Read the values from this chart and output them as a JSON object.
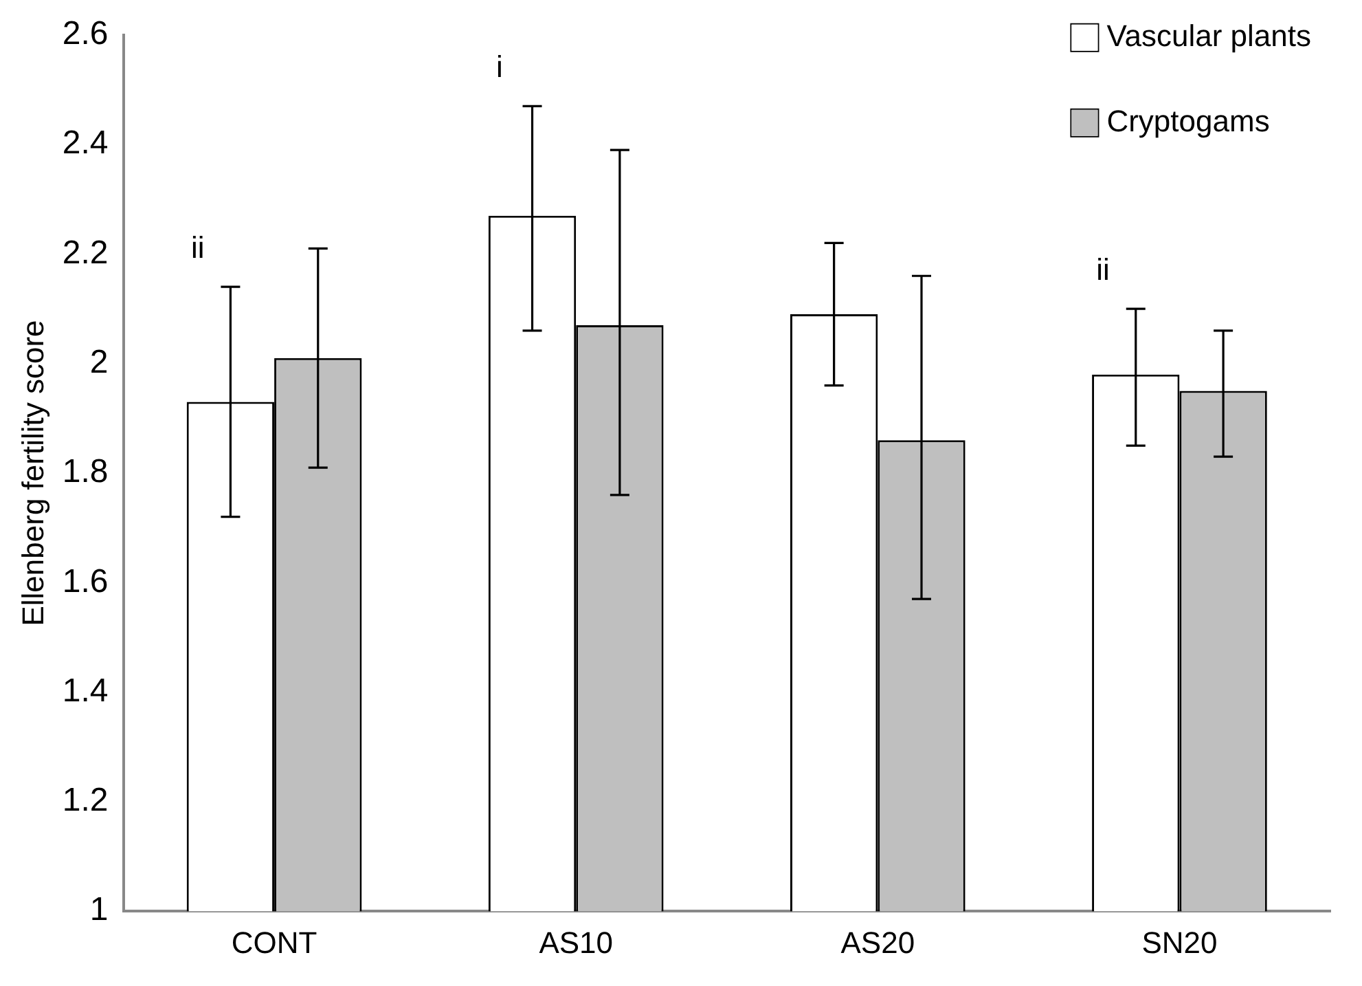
{
  "chart_data": {
    "type": "bar",
    "ylabel": "Ellenberg fertility score",
    "categories": [
      "CONT",
      "AS10",
      "AS20",
      "SN20"
    ],
    "series": [
      {
        "name": "Vascular plants",
        "color": "#ffffff",
        "values": [
          1.93,
          2.27,
          2.09,
          1.98
        ],
        "errors": [
          [
            1.72,
            2.14
          ],
          [
            2.06,
            2.47
          ],
          [
            1.96,
            2.22
          ],
          [
            1.85,
            2.1
          ]
        ]
      },
      {
        "name": "Cryptogams",
        "color": "#bfbfbf",
        "values": [
          2.01,
          2.07,
          1.86,
          1.95
        ],
        "errors": [
          [
            1.81,
            2.21
          ],
          [
            1.76,
            2.39
          ],
          [
            1.57,
            2.16
          ],
          [
            1.83,
            2.06
          ]
        ]
      }
    ],
    "ylim": [
      1,
      2.6
    ],
    "yticks": [
      1,
      1.2,
      1.4,
      1.6,
      1.8,
      2,
      2.2,
      2.4,
      2.6
    ],
    "grid": false,
    "legend": "top right",
    "annotations": [
      "ii",
      "i",
      "ii"
    ]
  }
}
